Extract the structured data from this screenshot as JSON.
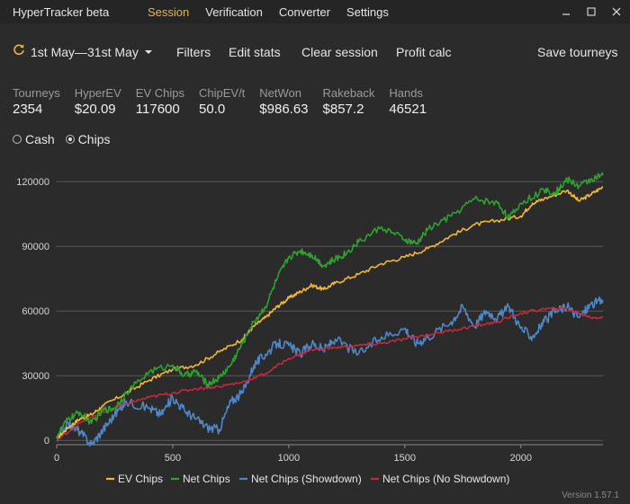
{
  "app": {
    "title": "HyperTracker beta",
    "menu": [
      "Session",
      "Verification",
      "Converter",
      "Settings"
    ],
    "active_menu": "Session",
    "version": "Version 1.57.1"
  },
  "toolbar": {
    "date_range": "1st May—31st May",
    "filters": "Filters",
    "edit_stats": "Edit stats",
    "clear_session": "Clear session",
    "profit_calc": "Profit calc",
    "save_tourneys": "Save tourneys"
  },
  "stats": [
    {
      "label": "Tourneys",
      "value": "2354"
    },
    {
      "label": "HyperEV",
      "value": "$20.09"
    },
    {
      "label": "EV Chips",
      "value": "117600"
    },
    {
      "label": "ChipEV/t",
      "value": "50.0"
    },
    {
      "label": "NetWon",
      "value": "$986.63"
    },
    {
      "label": "Rakeback",
      "value": "$857.2"
    },
    {
      "label": "Hands",
      "value": "46521"
    }
  ],
  "mode": {
    "options": [
      "Cash",
      "Chips"
    ],
    "selected": "Chips"
  },
  "colors": {
    "accent": "#e8b54a",
    "ev_chips": "#f2b730",
    "net_chips": "#2ea12e",
    "showdown": "#4f86c6",
    "no_showdown": "#c8283c",
    "grid": "#5a5a5a"
  },
  "chart_data": {
    "type": "line",
    "xlim": [
      0,
      2354
    ],
    "ylim": [
      -2000,
      128000
    ],
    "xticks": [
      0,
      500,
      1000,
      1500,
      2000
    ],
    "yticks": [
      0,
      30000,
      60000,
      90000,
      120000
    ],
    "grid": true,
    "legend_position": "bottom",
    "series": [
      {
        "name": "EV Chips",
        "x": [
          0,
          50,
          100,
          150,
          200,
          300,
          400,
          500,
          600,
          700,
          800,
          850,
          900,
          950,
          1000,
          1050,
          1100,
          1150,
          1200,
          1300,
          1400,
          1500,
          1600,
          1700,
          1800,
          1900,
          2000,
          2050,
          2100,
          2200,
          2250,
          2300,
          2354
        ],
        "y": [
          1000,
          6000,
          10000,
          12000,
          16000,
          22000,
          28000,
          33000,
          35000,
          41000,
          47000,
          53000,
          57000,
          62000,
          66000,
          69000,
          72000,
          70000,
          73000,
          77000,
          82000,
          85000,
          89000,
          95000,
          100000,
          102000,
          104000,
          110000,
          112000,
          116000,
          111000,
          114000,
          117600
        ]
      },
      {
        "name": "Net Chips",
        "x": [
          0,
          50,
          100,
          150,
          200,
          250,
          300,
          400,
          500,
          550,
          600,
          650,
          700,
          750,
          800,
          850,
          900,
          950,
          1000,
          1050,
          1100,
          1150,
          1200,
          1250,
          1300,
          1400,
          1500,
          1550,
          1600,
          1700,
          1800,
          1900,
          1950,
          2000,
          2100,
          2150,
          2200,
          2250,
          2300,
          2354
        ],
        "y": [
          2000,
          10000,
          13000,
          8000,
          14000,
          15000,
          22000,
          32000,
          35000,
          30000,
          32000,
          26000,
          29000,
          35000,
          45000,
          55000,
          62000,
          75000,
          85000,
          88000,
          86000,
          81000,
          84000,
          87000,
          92000,
          99000,
          93000,
          91000,
          98000,
          104000,
          112000,
          110000,
          103000,
          110000,
          116000,
          115000,
          121000,
          118000,
          121000,
          123000
        ]
      },
      {
        "name": "Net Chips (Showdown)",
        "x": [
          0,
          50,
          100,
          150,
          200,
          250,
          300,
          400,
          450,
          500,
          550,
          600,
          650,
          700,
          750,
          800,
          850,
          900,
          950,
          1000,
          1050,
          1100,
          1150,
          1200,
          1300,
          1400,
          1500,
          1550,
          1600,
          1700,
          1750,
          1800,
          1850,
          1900,
          1950,
          2000,
          2050,
          2100,
          2150,
          2200,
          2250,
          2300,
          2354
        ],
        "y": [
          0,
          8000,
          4000,
          -2000,
          5000,
          12000,
          18000,
          15000,
          12000,
          20000,
          14000,
          10000,
          6000,
          5000,
          18000,
          22000,
          35000,
          40000,
          45000,
          44000,
          40000,
          45000,
          42000,
          47000,
          40000,
          48000,
          52000,
          45000,
          48000,
          55000,
          62000,
          53000,
          60000,
          57000,
          62000,
          52000,
          48000,
          55000,
          60000,
          62000,
          57000,
          63000,
          65000
        ]
      },
      {
        "name": "Net Chips (No Showdown)",
        "x": [
          0,
          100,
          200,
          300,
          400,
          500,
          600,
          700,
          800,
          900,
          1000,
          1100,
          1200,
          1300,
          1400,
          1500,
          1600,
          1700,
          1800,
          1900,
          2000,
          2100,
          2200,
          2300,
          2354
        ],
        "y": [
          0,
          8000,
          13000,
          17000,
          20000,
          22000,
          24000,
          25000,
          27000,
          31000,
          38000,
          42000,
          43000,
          44000,
          45000,
          47000,
          49000,
          51000,
          53000,
          55000,
          59000,
          61000,
          61000,
          57000,
          57000
        ]
      }
    ]
  }
}
